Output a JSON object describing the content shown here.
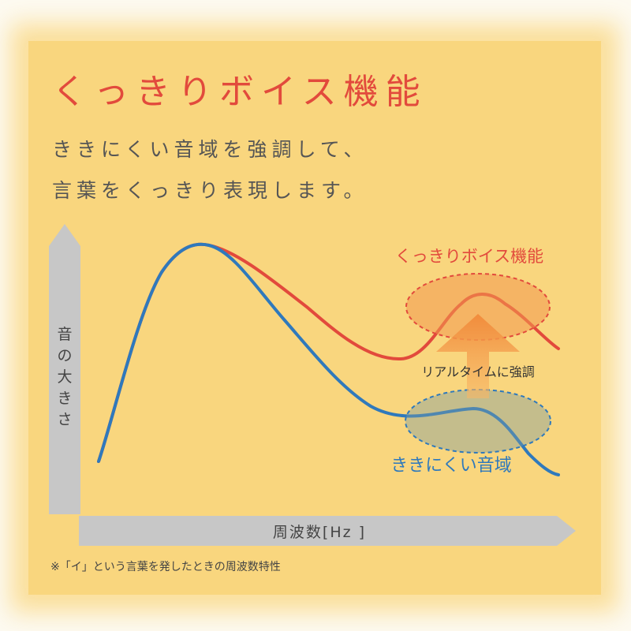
{
  "title": "くっきりボイス機能",
  "subtitle": [
    "ききにくい音域を強調して、",
    "言葉をくっきり表現します。"
  ],
  "axes": {
    "y_label": "音の大きさ",
    "x_label": "周波数[Hz ]"
  },
  "labels": {
    "enhanced": "くっきりボイス機能",
    "boost": "リアルタイムに強調",
    "hard_band": "ききにくい音域"
  },
  "footnote": "※「イ」という言葉を発したときの周波数特性",
  "colors": {
    "background": "#f9d67e",
    "enhanced_curve": "#e24a3c",
    "original_curve": "#2f79bc",
    "axis": "#c7c7c7",
    "arrow": "#f3a04b"
  },
  "icons": {
    "boost": "up-arrow-icon"
  }
}
